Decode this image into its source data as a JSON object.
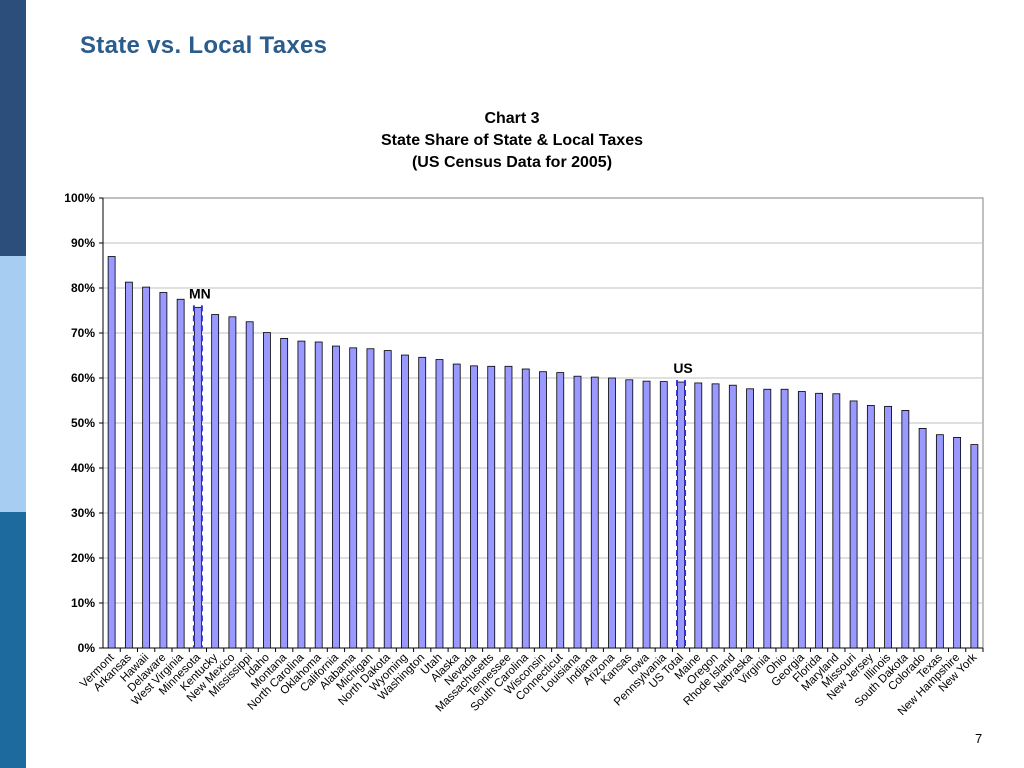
{
  "slide": {
    "title": "State vs. Local Taxes",
    "page_number": "7"
  },
  "colors": {
    "bar_fill": "#9999ff",
    "bar_stroke": "#000000",
    "highlight_line": "#3333cc",
    "sidebar_top": "#2b4f7a",
    "sidebar_mid": "#a8cdf2",
    "sidebar_bottom": "#1d6a9e"
  },
  "chart_data": {
    "type": "bar",
    "title_lines": [
      "Chart 3",
      "State Share of State & Local Taxes",
      "(US Census Data for 2005)"
    ],
    "ylim": [
      0,
      100
    ],
    "y_ticks": [
      "0%",
      "10%",
      "20%",
      "30%",
      "40%",
      "50%",
      "60%",
      "70%",
      "80%",
      "90%",
      "100%"
    ],
    "grid": true,
    "categories": [
      "Vermont",
      "Arkansas",
      "Hawaii",
      "Delaware",
      "West Virginia",
      "Minnesota",
      "Kentucky",
      "New Mexico",
      "Mississippi",
      "Idaho",
      "Montana",
      "North Carolina",
      "Oklahoma",
      "California",
      "Alabama",
      "Michigan",
      "North Dakota",
      "Wyoming",
      "Washington",
      "Utah",
      "Alaska",
      "Nevada",
      "Massachusetts",
      "Tennessee",
      "South Carolina",
      "Wisconsin",
      "Connecticut",
      "Louisiana",
      "Indiana",
      "Arizona",
      "Kansas",
      "Iowa",
      "Pennsylvania",
      "US Total",
      "Maine",
      "Oregon",
      "Rhode Island",
      "Nebraska",
      "Virginia",
      "Ohio",
      "Georgia",
      "Florida",
      "Maryland",
      "Missouri",
      "New Jersey",
      "Illinois",
      "South Dakota",
      "Colorado",
      "Texas",
      "New Hampshire",
      "New York"
    ],
    "values": [
      87.0,
      81.3,
      80.2,
      79.0,
      77.5,
      75.7,
      74.1,
      73.6,
      72.5,
      70.1,
      68.8,
      68.2,
      68.0,
      67.1,
      66.7,
      66.5,
      66.1,
      65.1,
      64.6,
      64.1,
      63.1,
      62.7,
      62.6,
      62.6,
      62.0,
      61.4,
      61.2,
      60.4,
      60.2,
      60.0,
      59.6,
      59.3,
      59.2,
      59.1,
      58.9,
      58.7,
      58.4,
      57.6,
      57.5,
      57.5,
      57.0,
      56.6,
      56.5,
      54.9,
      53.9,
      53.7,
      52.8,
      48.8,
      47.4,
      46.8,
      45.2
    ],
    "annotations": [
      {
        "label": "MN",
        "category": "Minnesota"
      },
      {
        "label": "US",
        "category": "US Total"
      }
    ]
  }
}
